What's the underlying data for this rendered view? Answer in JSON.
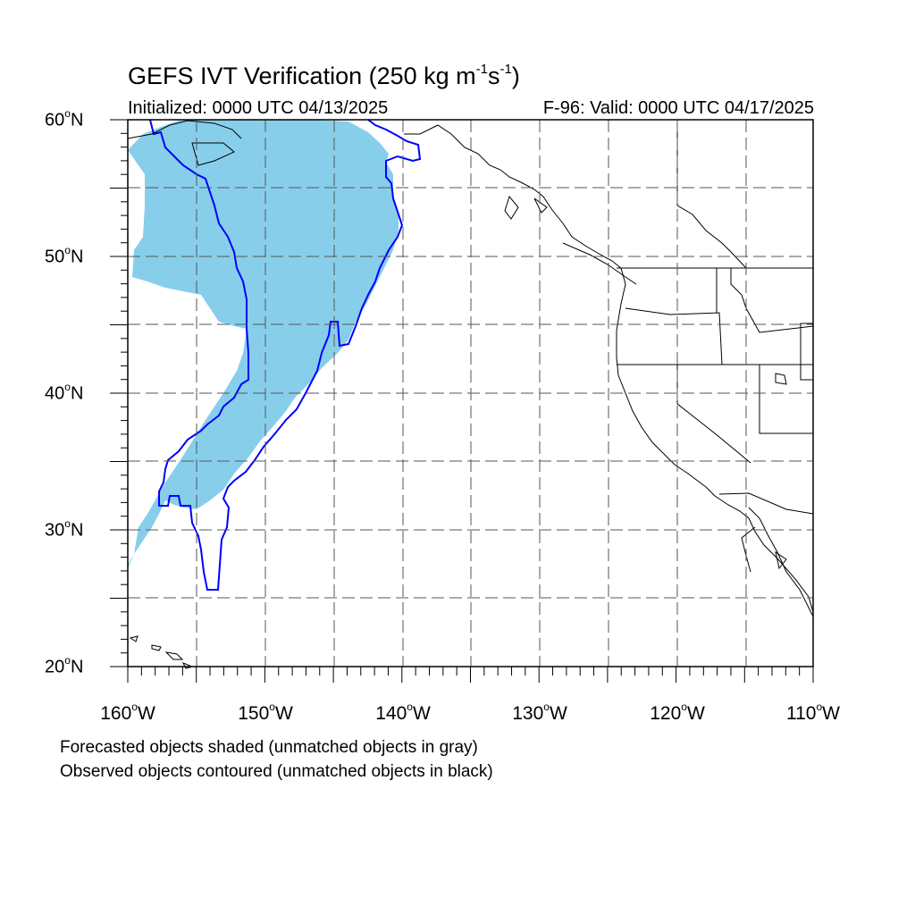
{
  "title_main": "GEFS IVT Verification (250 kg m",
  "title_exp1": "-1",
  "title_mid": "s",
  "title_exp2": "-1",
  "title_end": ")",
  "subtitle_left": "Initialized: 0000 UTC 04/13/2025",
  "subtitle_right": "F-96: Valid: 0000 UTC 04/17/2025",
  "degree_mark": "o",
  "lat_labels": [
    {
      "num": "60",
      "hemi": "N"
    },
    {
      "num": "50",
      "hemi": "N"
    },
    {
      "num": "40",
      "hemi": "N"
    },
    {
      "num": "30",
      "hemi": "N"
    },
    {
      "num": "20",
      "hemi": "N"
    }
  ],
  "lon_labels": [
    {
      "num": "160",
      "hemi": "W"
    },
    {
      "num": "150",
      "hemi": "W"
    },
    {
      "num": "140",
      "hemi": "W"
    },
    {
      "num": "130",
      "hemi": "W"
    },
    {
      "num": "120",
      "hemi": "W"
    },
    {
      "num": "110",
      "hemi": "W"
    }
  ],
  "legend_notes": [
    "Forecasted objects shaded (unmatched objects in gray)",
    "Observed objects contoured (unmatched objects in black)"
  ],
  "map_extent": {
    "lon_min": -160,
    "lon_max": -110,
    "lat_min": 20,
    "lat_max": 60
  },
  "colors": {
    "forecast_fill": "#87ceeb",
    "observed_contour": "#0000ff",
    "coast": "#000000",
    "grid": "#555555"
  }
}
